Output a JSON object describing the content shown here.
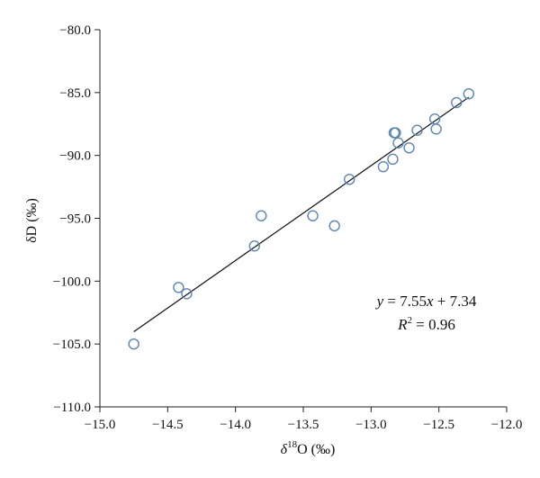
{
  "chart_data": {
    "type": "scatter",
    "xlabel": "δ18O (‰)",
    "xlabel_base": "δ",
    "xlabel_sup": "18",
    "xlabel_rest": "O (‰)",
    "ylabel": "δD (‰)",
    "xlim": [
      -15.0,
      -12.0
    ],
    "ylim": [
      -110.0,
      -80.0
    ],
    "x_ticks": [
      -15.0,
      -14.5,
      -14.0,
      -13.5,
      -13.0,
      -12.5,
      -12.0
    ],
    "x_tick_labels": [
      "−15.0",
      "−14.5",
      "−14.0",
      "−13.5",
      "−13.0",
      "−12.5",
      "−12.0"
    ],
    "y_ticks": [
      -80.0,
      -85.0,
      -90.0,
      -95.0,
      -100.0,
      -105.0,
      -110.0
    ],
    "y_tick_labels": [
      "−80.0",
      "−85.0",
      "−90.0",
      "−95.0",
      "−100.0",
      "−105.0",
      "−110.0"
    ],
    "grid": false,
    "point_color": "#5a86b8",
    "points": [
      {
        "x": -14.75,
        "y": -105.0
      },
      {
        "x": -14.42,
        "y": -100.5
      },
      {
        "x": -14.36,
        "y": -101.0
      },
      {
        "x": -13.86,
        "y": -97.2
      },
      {
        "x": -13.81,
        "y": -94.8
      },
      {
        "x": -13.43,
        "y": -94.8
      },
      {
        "x": -13.27,
        "y": -95.6
      },
      {
        "x": -13.16,
        "y": -91.9
      },
      {
        "x": -12.91,
        "y": -90.9
      },
      {
        "x": -12.84,
        "y": -90.3
      },
      {
        "x": -12.83,
        "y": -88.2
      },
      {
        "x": -12.82,
        "y": -88.2
      },
      {
        "x": -12.8,
        "y": -89.0
      },
      {
        "x": -12.72,
        "y": -89.4
      },
      {
        "x": -12.66,
        "y": -88.0
      },
      {
        "x": -12.53,
        "y": -87.1
      },
      {
        "x": -12.52,
        "y": -87.9
      },
      {
        "x": -12.37,
        "y": -85.8
      },
      {
        "x": -12.28,
        "y": -85.1
      }
    ],
    "trendline": {
      "slope": 7.55,
      "intercept": 7.34,
      "x_range": [
        -14.75,
        -12.28
      ]
    },
    "annotation": {
      "equation_y": "y",
      "equation_eq": " = 7.55",
      "equation_x": "x",
      "equation_rest": " + 7.34",
      "r2_r": "R",
      "r2_sup": "2",
      "r2_rest": " = 0.96"
    }
  }
}
